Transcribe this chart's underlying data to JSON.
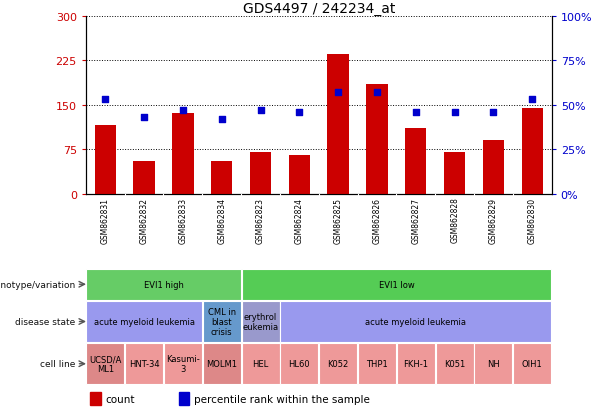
{
  "title": "GDS4497 / 242234_at",
  "samples": [
    "GSM862831",
    "GSM862832",
    "GSM862833",
    "GSM862834",
    "GSM862823",
    "GSM862824",
    "GSM862825",
    "GSM862826",
    "GSM862827",
    "GSM862828",
    "GSM862829",
    "GSM862830"
  ],
  "bar_values": [
    115,
    55,
    135,
    55,
    70,
    65,
    235,
    185,
    110,
    70,
    90,
    145
  ],
  "dot_values_pct": [
    53,
    43,
    47,
    42,
    47,
    46,
    57,
    57,
    46,
    46,
    46,
    53
  ],
  "ylim_left": [
    0,
    300
  ],
  "ylim_right": [
    0,
    100
  ],
  "yticks_left": [
    0,
    75,
    150,
    225,
    300
  ],
  "ytick_labels_left": [
    "0",
    "75",
    "150",
    "225",
    "300"
  ],
  "yticks_right": [
    0,
    25,
    50,
    75,
    100
  ],
  "ytick_labels_right": [
    "0%",
    "25%",
    "50%",
    "75%",
    "100%"
  ],
  "bar_color": "#cc0000",
  "dot_color": "#0000cc",
  "bg_color": "#ffffff",
  "gsm_bg": "#cccccc",
  "genotype_spans": [
    {
      "text": "EVI1 high",
      "start": 0,
      "end": 4,
      "color": "#66cc66"
    },
    {
      "text": "EVI1 low",
      "start": 4,
      "end": 12,
      "color": "#55cc55"
    }
  ],
  "disease_spans": [
    {
      "text": "acute myeloid leukemia",
      "start": 0,
      "end": 3,
      "color": "#9999ee"
    },
    {
      "text": "CML in\nblast\ncrisis",
      "start": 3,
      "end": 4,
      "color": "#6699cc"
    },
    {
      "text": "erythrol\neukemia",
      "start": 4,
      "end": 5,
      "color": "#9999cc"
    },
    {
      "text": "acute myeloid leukemia",
      "start": 5,
      "end": 12,
      "color": "#9999ee"
    }
  ],
  "cell_spans": [
    {
      "text": "UCSD/A\nML1",
      "start": 0,
      "end": 1,
      "color": "#dd8888"
    },
    {
      "text": "HNT-34",
      "start": 1,
      "end": 2,
      "color": "#ee9999"
    },
    {
      "text": "Kasumi-\n3",
      "start": 2,
      "end": 3,
      "color": "#ee9999"
    },
    {
      "text": "MOLM1",
      "start": 3,
      "end": 4,
      "color": "#dd8888"
    },
    {
      "text": "HEL",
      "start": 4,
      "end": 5,
      "color": "#ee9999"
    },
    {
      "text": "HL60",
      "start": 5,
      "end": 6,
      "color": "#ee9999"
    },
    {
      "text": "K052",
      "start": 6,
      "end": 7,
      "color": "#ee9999"
    },
    {
      "text": "THP1",
      "start": 7,
      "end": 8,
      "color": "#ee9999"
    },
    {
      "text": "FKH-1",
      "start": 8,
      "end": 9,
      "color": "#ee9999"
    },
    {
      "text": "K051",
      "start": 9,
      "end": 10,
      "color": "#ee9999"
    },
    {
      "text": "NH",
      "start": 10,
      "end": 11,
      "color": "#ee9999"
    },
    {
      "text": "OIH1",
      "start": 11,
      "end": 12,
      "color": "#ee9999"
    }
  ],
  "row_labels": [
    "genotype/variation",
    "disease state",
    "cell line"
  ],
  "legend_items": [
    {
      "color": "#cc0000",
      "label": "count"
    },
    {
      "color": "#0000cc",
      "label": "percentile rank within the sample"
    }
  ]
}
